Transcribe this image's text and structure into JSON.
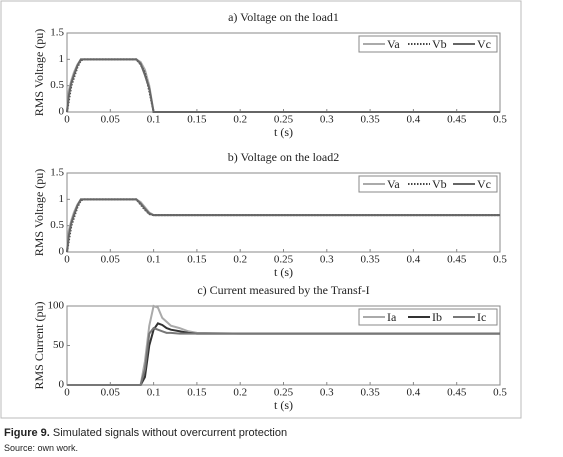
{
  "chart_data": [
    {
      "type": "line",
      "title": "a) Voltage on the load1",
      "xlabel": "t (s)",
      "ylabel": "RMS Voltage (pu)",
      "x": [
        0,
        0.002,
        0.005,
        0.008,
        0.012,
        0.016,
        0.02,
        0.08,
        0.085,
        0.09,
        0.095,
        0.1,
        0.11,
        0.5
      ],
      "series": [
        {
          "name": "Va",
          "color": "#aaaaaa",
          "style": "solid",
          "values": [
            0,
            0.4,
            0.6,
            0.75,
            0.9,
            1,
            1,
            1,
            0.95,
            0.8,
            0.5,
            0,
            0,
            0
          ]
        },
        {
          "name": "Vb",
          "color": "#444444",
          "style": "dotted",
          "values": [
            0,
            0.2,
            0.5,
            0.65,
            0.85,
            0.98,
            1,
            1,
            0.9,
            0.75,
            0.4,
            0,
            0,
            0
          ]
        },
        {
          "name": "Vc",
          "color": "#666666",
          "style": "solid",
          "values": [
            0,
            0.3,
            0.55,
            0.7,
            0.88,
            1,
            1,
            1,
            0.92,
            0.7,
            0.45,
            0,
            0,
            0
          ]
        }
      ],
      "xlim": [
        0,
        0.5
      ],
      "ylim": [
        0,
        1.5
      ],
      "xticks": [
        0,
        0.05,
        0.1,
        0.15,
        0.2,
        0.25,
        0.3,
        0.35,
        0.4,
        0.45,
        0.5
      ],
      "yticks": [
        0,
        0.5,
        1,
        1.5
      ],
      "legend": "upper right"
    },
    {
      "type": "line",
      "title": "b) Voltage on the load2",
      "xlabel": "t (s)",
      "ylabel": "RMS Voltage (pu)",
      "x": [
        0,
        0.002,
        0.005,
        0.008,
        0.012,
        0.016,
        0.02,
        0.08,
        0.085,
        0.09,
        0.095,
        0.1,
        0.5
      ],
      "series": [
        {
          "name": "Va",
          "color": "#aaaaaa",
          "style": "solid",
          "values": [
            0,
            0.4,
            0.6,
            0.75,
            0.9,
            1,
            1,
            1,
            0.95,
            0.85,
            0.75,
            0.7,
            0.7
          ]
        },
        {
          "name": "Vb",
          "color": "#444444",
          "style": "dotted",
          "values": [
            0,
            0.2,
            0.5,
            0.65,
            0.85,
            0.98,
            1,
            1,
            0.9,
            0.8,
            0.72,
            0.7,
            0.7
          ]
        },
        {
          "name": "Vc",
          "color": "#666666",
          "style": "solid",
          "values": [
            0,
            0.3,
            0.55,
            0.7,
            0.88,
            1,
            1,
            1,
            0.92,
            0.82,
            0.73,
            0.7,
            0.7
          ]
        }
      ],
      "xlim": [
        0,
        0.5
      ],
      "ylim": [
        0,
        1.5
      ],
      "xticks": [
        0,
        0.05,
        0.1,
        0.15,
        0.2,
        0.25,
        0.3,
        0.35,
        0.4,
        0.45,
        0.5
      ],
      "yticks": [
        0,
        0.5,
        1,
        1.5
      ],
      "legend": "upper right"
    },
    {
      "type": "line",
      "title": "c) Current measured by the Transf-I",
      "xlabel": "t (s)",
      "ylabel": "RMS Current (pu)",
      "x": [
        0,
        0.085,
        0.09,
        0.095,
        0.1,
        0.105,
        0.11,
        0.115,
        0.12,
        0.13,
        0.14,
        0.15,
        0.2,
        0.5
      ],
      "series": [
        {
          "name": "Ia",
          "color": "#aaaaaa",
          "style": "solid",
          "values": [
            0,
            0,
            30,
            75,
            100,
            98,
            85,
            80,
            75,
            72,
            68,
            66,
            65,
            65
          ]
        },
        {
          "name": "Ib",
          "color": "#333333",
          "style": "solid",
          "values": [
            0,
            0,
            10,
            50,
            70,
            78,
            76,
            72,
            70,
            68,
            66,
            65,
            65,
            65
          ]
        },
        {
          "name": "Ic",
          "color": "#777777",
          "style": "solid",
          "values": [
            0,
            0,
            20,
            65,
            72,
            70,
            68,
            66,
            66,
            65,
            65,
            65,
            65,
            65
          ]
        }
      ],
      "xlim": [
        0,
        0.5
      ],
      "ylim": [
        0,
        100
      ],
      "xticks": [
        0,
        0.05,
        0.1,
        0.15,
        0.2,
        0.25,
        0.3,
        0.35,
        0.4,
        0.45,
        0.5
      ],
      "yticks": [
        0,
        50,
        100
      ],
      "legend": "upper right"
    }
  ],
  "caption_label": "Figure 9.",
  "caption_text": "Simulated signals without overcurrent protection",
  "source": "Source: own work."
}
